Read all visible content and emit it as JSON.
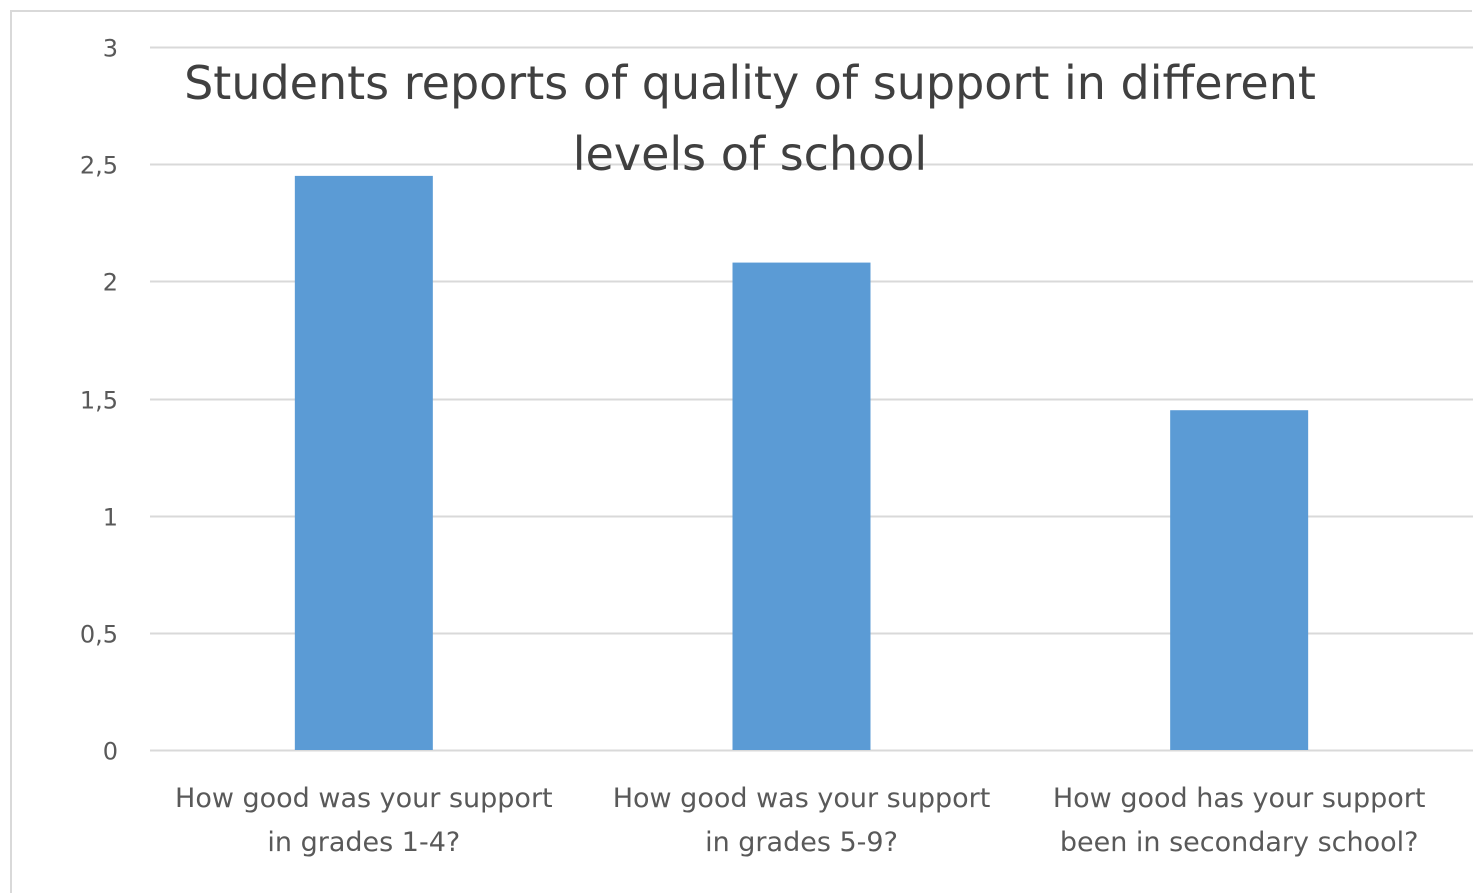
{
  "chart_data": {
    "type": "bar",
    "title_lines": [
      "Students reports of quality of support in different",
      "levels of school"
    ],
    "categories": [
      {
        "lines": [
          "How good was your support",
          "in grades 1-4?"
        ]
      },
      {
        "lines": [
          "How good was your support",
          "in grades 5-9?"
        ]
      },
      {
        "lines": [
          "How good has your support",
          "been in secondary school?"
        ]
      }
    ],
    "values": [
      2.45,
      2.08,
      1.45
    ],
    "ylim": [
      0,
      3
    ],
    "yticks": [
      "0",
      "0,5",
      "1",
      "1,5",
      "2",
      "2,5",
      "3"
    ],
    "ytick_values": [
      0,
      0.5,
      1,
      1.5,
      2,
      2.5,
      3
    ],
    "grid": true,
    "bar_color": "#5b9bd5",
    "grid_color": "#d9d9d9"
  }
}
